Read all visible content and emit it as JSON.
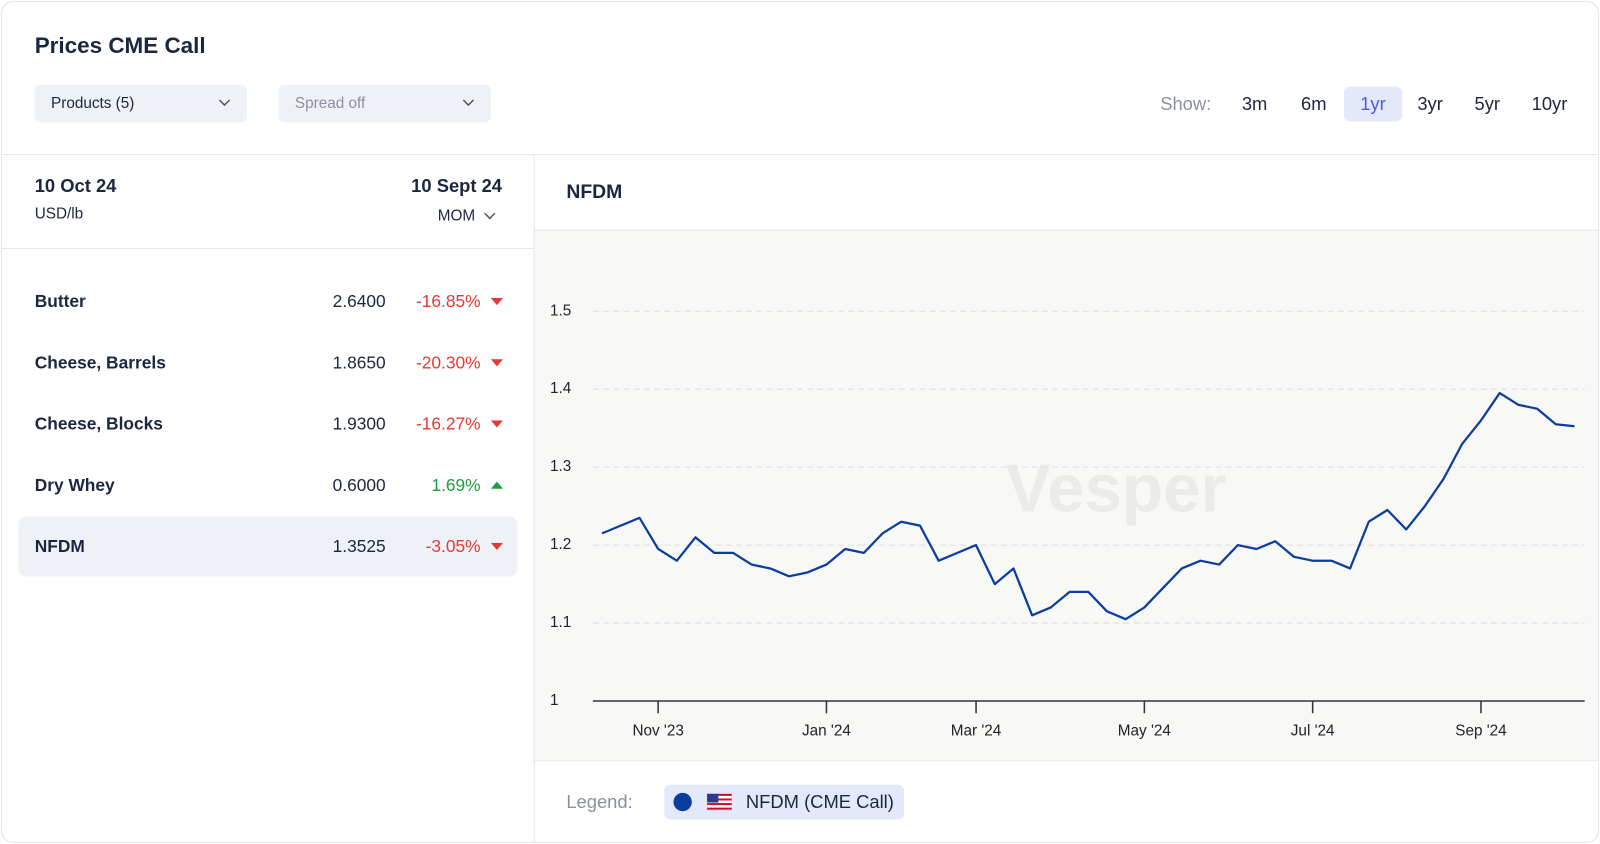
{
  "header": {
    "title": "Prices CME Call",
    "filters": [
      "Products (5)",
      "Spread off"
    ],
    "show_label": "Show:",
    "ranges": [
      "3m",
      "6m",
      "1yr",
      "3yr",
      "5yr",
      "10yr"
    ],
    "selected_range": "1yr"
  },
  "table": {
    "date": "10 Oct 24",
    "unit": "USD/lb",
    "compare_date": "10 Sept 24",
    "compare_mode": "MOM",
    "selected_row": "NFDM",
    "rows": [
      [
        "Butter",
        "2.6400",
        "-16.85%"
      ],
      [
        "Cheese, Barrels",
        "1.8650",
        "-20.30%"
      ],
      [
        "Cheese, Blocks",
        "1.9300",
        "-16.27%"
      ],
      [
        "Dry Whey",
        "0.6000",
        "1.69%"
      ],
      [
        "NFDM",
        "1.3525",
        "-3.05%"
      ]
    ]
  },
  "chart_data": {
    "type": "line",
    "title": "NFDM",
    "watermark": "Vesper",
    "legend_label": "Legend:",
    "categories": [
      null,
      null,
      null,
      "Nov '23",
      null,
      null,
      null,
      null,
      null,
      null,
      null,
      null,
      "Jan '24",
      null,
      null,
      null,
      null,
      null,
      null,
      null,
      "Mar '24",
      null,
      null,
      null,
      null,
      null,
      null,
      null,
      null,
      "May '24",
      null,
      null,
      null,
      null,
      null,
      null,
      null,
      null,
      "Jul '24",
      null,
      null,
      null,
      null,
      null,
      null,
      null,
      null,
      "Sep '24",
      null,
      null,
      null,
      null,
      null
    ],
    "series": [
      {
        "name": "NFDM (CME Call)",
        "color": "#0b3d9c",
        "values": [
          1.215,
          1.225,
          1.235,
          1.195,
          1.18,
          1.21,
          1.19,
          1.19,
          1.175,
          1.17,
          1.16,
          1.165,
          1.175,
          1.195,
          1.19,
          1.215,
          1.23,
          1.225,
          1.18,
          1.19,
          1.2,
          1.15,
          1.17,
          1.11,
          1.12,
          1.14,
          1.14,
          1.115,
          1.105,
          1.12,
          1.145,
          1.17,
          1.18,
          1.175,
          1.2,
          1.195,
          1.205,
          1.185,
          1.18,
          1.18,
          1.17,
          1.23,
          1.245,
          1.22,
          1.25,
          1.285,
          1.33,
          1.36,
          1.395,
          1.38,
          1.375,
          1.355,
          1.3525
        ]
      }
    ],
    "ylim": [
      1,
      1.5
    ],
    "yticks": [
      1,
      1.1,
      1.2,
      1.3,
      1.4,
      1.5
    ],
    "grid": true
  }
}
